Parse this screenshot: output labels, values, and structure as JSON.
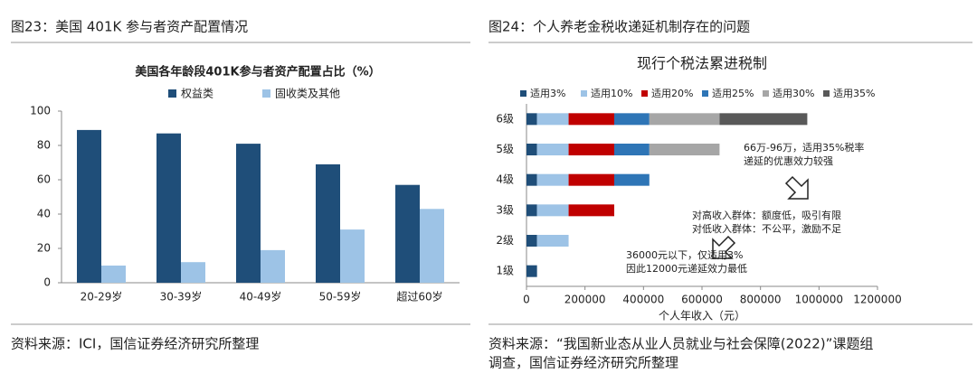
{
  "chart_data": [
    {
      "type": "bar",
      "caption": "图23：美国 401K 参与者资产配置情况",
      "title": "美国各年龄段401K参与者资产配置占比（%）",
      "categories": [
        "20-29岁",
        "30-39岁",
        "40-49岁",
        "50-59岁",
        "超过60岁"
      ],
      "series": [
        {
          "name": "权益类",
          "color": "#1f4e79",
          "values": [
            89,
            87,
            81,
            69,
            57
          ]
        },
        {
          "name": "固收类及其他",
          "color": "#9dc3e6",
          "values": [
            10,
            12,
            19,
            31,
            43
          ]
        }
      ],
      "ylim": [
        0,
        100
      ],
      "yticks": [
        0,
        20,
        40,
        60,
        80,
        100
      ],
      "grid": false,
      "source": [
        "资料来源：ICI，国信证券经济研究所整理"
      ]
    },
    {
      "type": "barh-stacked",
      "caption": "图24：个人养老金税收递延机制存在的问题",
      "title": "现行个税法累进税制",
      "categories": [
        "1级",
        "2级",
        "3级",
        "4级",
        "5级",
        "6级"
      ],
      "series": [
        {
          "name": "适用3%",
          "color": "#1f4e79",
          "values": [
            36000,
            36000,
            36000,
            36000,
            36000,
            36000
          ]
        },
        {
          "name": "适用10%",
          "color": "#9dc3e6",
          "values": [
            null,
            108000,
            108000,
            108000,
            108000,
            108000
          ]
        },
        {
          "name": "适用20%",
          "color": "#c00000",
          "values": [
            null,
            null,
            156000,
            156000,
            156000,
            156000
          ]
        },
        {
          "name": "适用25%",
          "color": "#2e75b6",
          "values": [
            null,
            null,
            null,
            120000,
            120000,
            120000
          ]
        },
        {
          "name": "适用30%",
          "color": "#a6a6a6",
          "values": [
            null,
            null,
            null,
            null,
            240000,
            240000
          ]
        },
        {
          "name": "适用35%",
          "color": "#595959",
          "values": [
            null,
            null,
            null,
            null,
            null,
            300000
          ]
        }
      ],
      "xlim": [
        0,
        1200000
      ],
      "xticks": [
        0,
        200000,
        400000,
        600000,
        800000,
        1000000,
        1200000
      ],
      "grid": false,
      "x_label": "个人年收入（元）",
      "annotations": [
        [
          "66万-96万，适用35%税率",
          "递延的优惠效力较强"
        ],
        [
          "对高收入群体：额度低，吸引有限",
          "对低收入群体：不公平，激励不足"
        ],
        [
          "36000元以下，仅适用3%",
          "因此12000元递延效力最低"
        ]
      ],
      "source": [
        "资料来源：“我国新业态从业人员就业与社会保障(2022)”课题组",
        "调查，国信证券经济研究所整理"
      ]
    }
  ]
}
